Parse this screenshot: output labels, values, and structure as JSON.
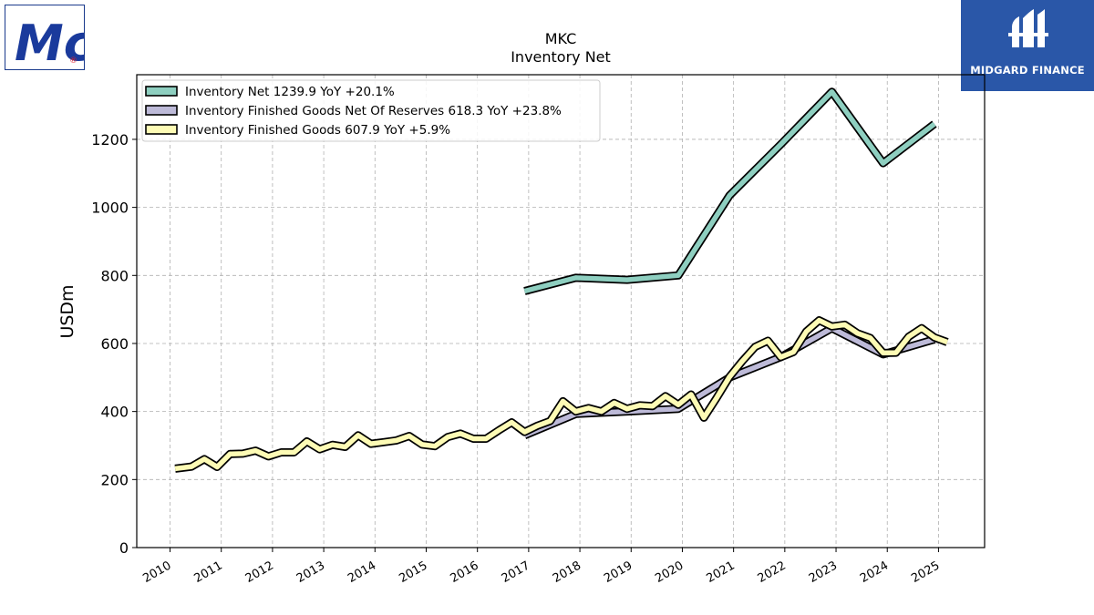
{
  "brand": {
    "left_logo": "McCormick",
    "left_logo_mark": "Mc",
    "left_logo_reg": "®",
    "right_logo_text": "MIDGARD FINANCE"
  },
  "colors": {
    "inventory_net": "#8ecfc0",
    "finished_goods_net_of_reserves": "#bdbad8",
    "finished_goods": "#fdfbb5",
    "grid": "#b0b0b0",
    "brand_blue": "#2a57a8"
  },
  "chart_data": {
    "type": "line",
    "title": "MKC",
    "subtitle": "Inventory Net",
    "ylabel": "USDm",
    "xlabel": "",
    "ylim": [
      0,
      1390
    ],
    "xlim": [
      2009.35,
      2025.9
    ],
    "yticks": [
      0,
      200,
      400,
      600,
      800,
      1000,
      1200
    ],
    "xticks": [
      "2010",
      "2011",
      "2012",
      "2013",
      "2014",
      "2015",
      "2016",
      "2017",
      "2018",
      "2019",
      "2020",
      "2021",
      "2022",
      "2023",
      "2024",
      "2025"
    ],
    "grid": true,
    "legend_position": "top-left",
    "series": [
      {
        "name": "Inventory Net",
        "legend": "Inventory Net  1239.9 YoY +20.1%",
        "color_key": "inventory_net",
        "points": [
          [
            2016.92,
            754
          ],
          [
            2017.92,
            793
          ],
          [
            2018.92,
            787
          ],
          [
            2019.92,
            800
          ],
          [
            2020.92,
            1035
          ],
          [
            2021.92,
            1185
          ],
          [
            2022.92,
            1340
          ],
          [
            2023.92,
            1130
          ],
          [
            2024.92,
            1245
          ]
        ]
      },
      {
        "name": "Inventory Finished Goods Net Of Reserves",
        "legend": "Inventory Finished Goods Net Of Reserves  618.3 YoY +23.8%",
        "color_key": "finished_goods_net_of_reserves",
        "points": [
          [
            2016.92,
            330
          ],
          [
            2017.92,
            393
          ],
          [
            2018.92,
            400
          ],
          [
            2019.92,
            408
          ],
          [
            2020.92,
            500
          ],
          [
            2021.92,
            560
          ],
          [
            2022.92,
            645
          ],
          [
            2023.92,
            568
          ],
          [
            2024.92,
            612
          ]
        ]
      },
      {
        "name": "Inventory Finished Goods",
        "legend": "Inventory Finished Goods  607.9 YoY +5.9%",
        "color_key": "finished_goods",
        "points": [
          [
            2010.1,
            232
          ],
          [
            2010.42,
            238
          ],
          [
            2010.67,
            260
          ],
          [
            2010.92,
            237
          ],
          [
            2011.17,
            275
          ],
          [
            2011.42,
            276
          ],
          [
            2011.67,
            285
          ],
          [
            2011.92,
            268
          ],
          [
            2012.17,
            280
          ],
          [
            2012.42,
            280
          ],
          [
            2012.67,
            312
          ],
          [
            2012.92,
            289
          ],
          [
            2013.17,
            302
          ],
          [
            2013.42,
            296
          ],
          [
            2013.67,
            330
          ],
          [
            2013.92,
            305
          ],
          [
            2014.17,
            310
          ],
          [
            2014.42,
            315
          ],
          [
            2014.67,
            328
          ],
          [
            2014.92,
            303
          ],
          [
            2015.17,
            298
          ],
          [
            2015.42,
            325
          ],
          [
            2015.67,
            335
          ],
          [
            2015.92,
            320
          ],
          [
            2016.17,
            320
          ],
          [
            2016.42,
            345
          ],
          [
            2016.67,
            368
          ],
          [
            2016.92,
            340
          ],
          [
            2017.17,
            358
          ],
          [
            2017.42,
            372
          ],
          [
            2017.67,
            430
          ],
          [
            2017.92,
            400
          ],
          [
            2018.17,
            410
          ],
          [
            2018.42,
            400
          ],
          [
            2018.67,
            425
          ],
          [
            2018.92,
            408
          ],
          [
            2019.17,
            418
          ],
          [
            2019.42,
            416
          ],
          [
            2019.67,
            445
          ],
          [
            2019.92,
            420
          ],
          [
            2020.17,
            450
          ],
          [
            2020.42,
            382
          ],
          [
            2020.67,
            440
          ],
          [
            2020.92,
            502
          ],
          [
            2021.17,
            548
          ],
          [
            2021.42,
            590
          ],
          [
            2021.67,
            608
          ],
          [
            2021.92,
            560
          ],
          [
            2022.17,
            575
          ],
          [
            2022.42,
            635
          ],
          [
            2022.67,
            668
          ],
          [
            2022.92,
            650
          ],
          [
            2023.17,
            655
          ],
          [
            2023.42,
            630
          ],
          [
            2023.67,
            616
          ],
          [
            2023.92,
            572
          ],
          [
            2024.17,
            573
          ],
          [
            2024.42,
            620
          ],
          [
            2024.67,
            645
          ],
          [
            2024.92,
            618
          ],
          [
            2025.17,
            604
          ]
        ]
      }
    ]
  }
}
